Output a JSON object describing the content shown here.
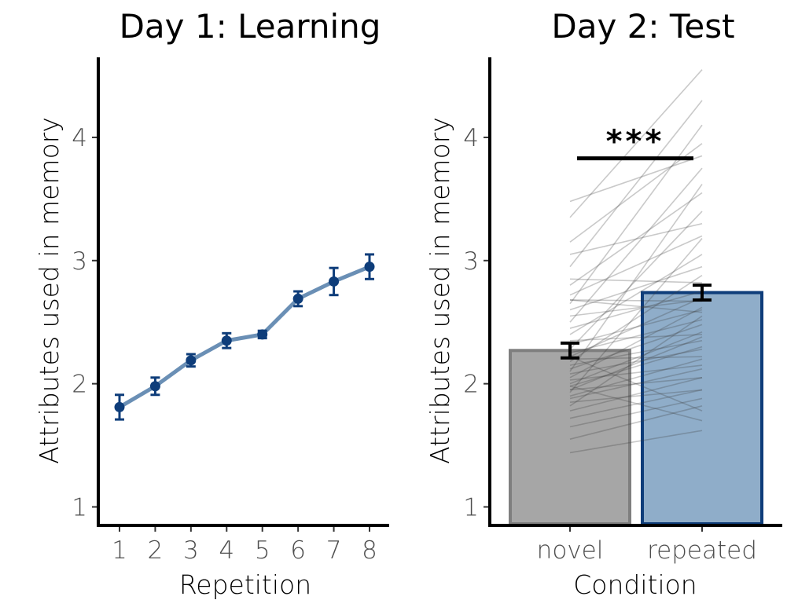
{
  "chart_data": [
    {
      "type": "line",
      "title": "Day 1: Learning",
      "xlabel": "Repetition",
      "ylabel": "Attributes used in memory",
      "x": [
        1,
        2,
        3,
        4,
        5,
        6,
        7,
        8
      ],
      "x_tick_labels": [
        "1",
        "2",
        "3",
        "4",
        "5",
        "6",
        "7",
        "8"
      ],
      "y_ticks": [
        1,
        2,
        3,
        4
      ],
      "y_tick_labels": [
        "1",
        "2",
        "3",
        "4"
      ],
      "ylim": [
        0.85,
        4.65
      ],
      "grid": false,
      "series": [
        {
          "values": [
            1.81,
            1.98,
            2.19,
            2.35,
            2.4,
            2.69,
            2.83,
            2.95
          ],
          "error": [
            0.1,
            0.07,
            0.05,
            0.06,
            0.03,
            0.06,
            0.11,
            0.1
          ],
          "line_color": "#6a8fb5",
          "marker_color": "#0e3d7a"
        }
      ]
    },
    {
      "type": "bar",
      "title": "Day 2: Test",
      "xlabel": "Condition",
      "ylabel": "Attributes used in memory",
      "categories": [
        "novel",
        "repeated"
      ],
      "values": [
        2.27,
        2.74
      ],
      "error": [
        0.06,
        0.06
      ],
      "y_ticks": [
        1,
        2,
        3,
        4
      ],
      "y_tick_labels": [
        "1",
        "2",
        "3",
        "4"
      ],
      "ylim": [
        0.85,
        4.65
      ],
      "grid": false,
      "bar_fill": [
        "#a6a6a6",
        "#8fadc9"
      ],
      "bar_stroke": [
        "#7f7f7f",
        "#0e3d7a"
      ],
      "significance": {
        "label": "***",
        "y": 3.83,
        "between": [
          "novel",
          "repeated"
        ]
      },
      "paired_lines": [
        [
          1.44,
          1.62
        ],
        [
          1.55,
          1.82
        ],
        [
          1.65,
          1.88
        ],
        [
          1.72,
          1.95
        ],
        [
          1.78,
          2.05
        ],
        [
          1.82,
          2.55
        ],
        [
          1.85,
          1.95
        ],
        [
          1.88,
          2.12
        ],
        [
          1.9,
          2.2
        ],
        [
          1.93,
          3.18
        ],
        [
          1.95,
          2.05
        ],
        [
          1.98,
          2.3
        ],
        [
          2.0,
          2.42
        ],
        [
          2.03,
          2.15
        ],
        [
          2.05,
          2.62
        ],
        [
          2.08,
          2.28
        ],
        [
          2.1,
          3.62
        ],
        [
          2.12,
          2.48
        ],
        [
          2.15,
          2.35
        ],
        [
          2.18,
          2.88
        ],
        [
          2.2,
          2.22
        ],
        [
          2.22,
          2.7
        ],
        [
          2.25,
          2.52
        ],
        [
          2.28,
          3.4
        ],
        [
          2.32,
          2.6
        ],
        [
          2.35,
          2.4
        ],
        [
          2.4,
          3.05
        ],
        [
          2.45,
          2.75
        ],
        [
          2.5,
          3.75
        ],
        [
          2.55,
          2.68
        ],
        [
          2.6,
          2.95
        ],
        [
          2.65,
          4.1
        ],
        [
          2.68,
          2.58
        ],
        [
          2.72,
          3.2
        ],
        [
          2.8,
          3.55
        ],
        [
          2.85,
          2.82
        ],
        [
          2.95,
          4.3
        ],
        [
          3.05,
          3.3
        ],
        [
          3.15,
          3.95
        ],
        [
          3.35,
          4.55
        ],
        [
          3.48,
          3.85
        ],
        [
          2.68,
          2.67
        ],
        [
          1.95,
          2.38
        ],
        [
          2.22,
          1.78
        ],
        [
          1.98,
          1.7
        ]
      ]
    }
  ]
}
